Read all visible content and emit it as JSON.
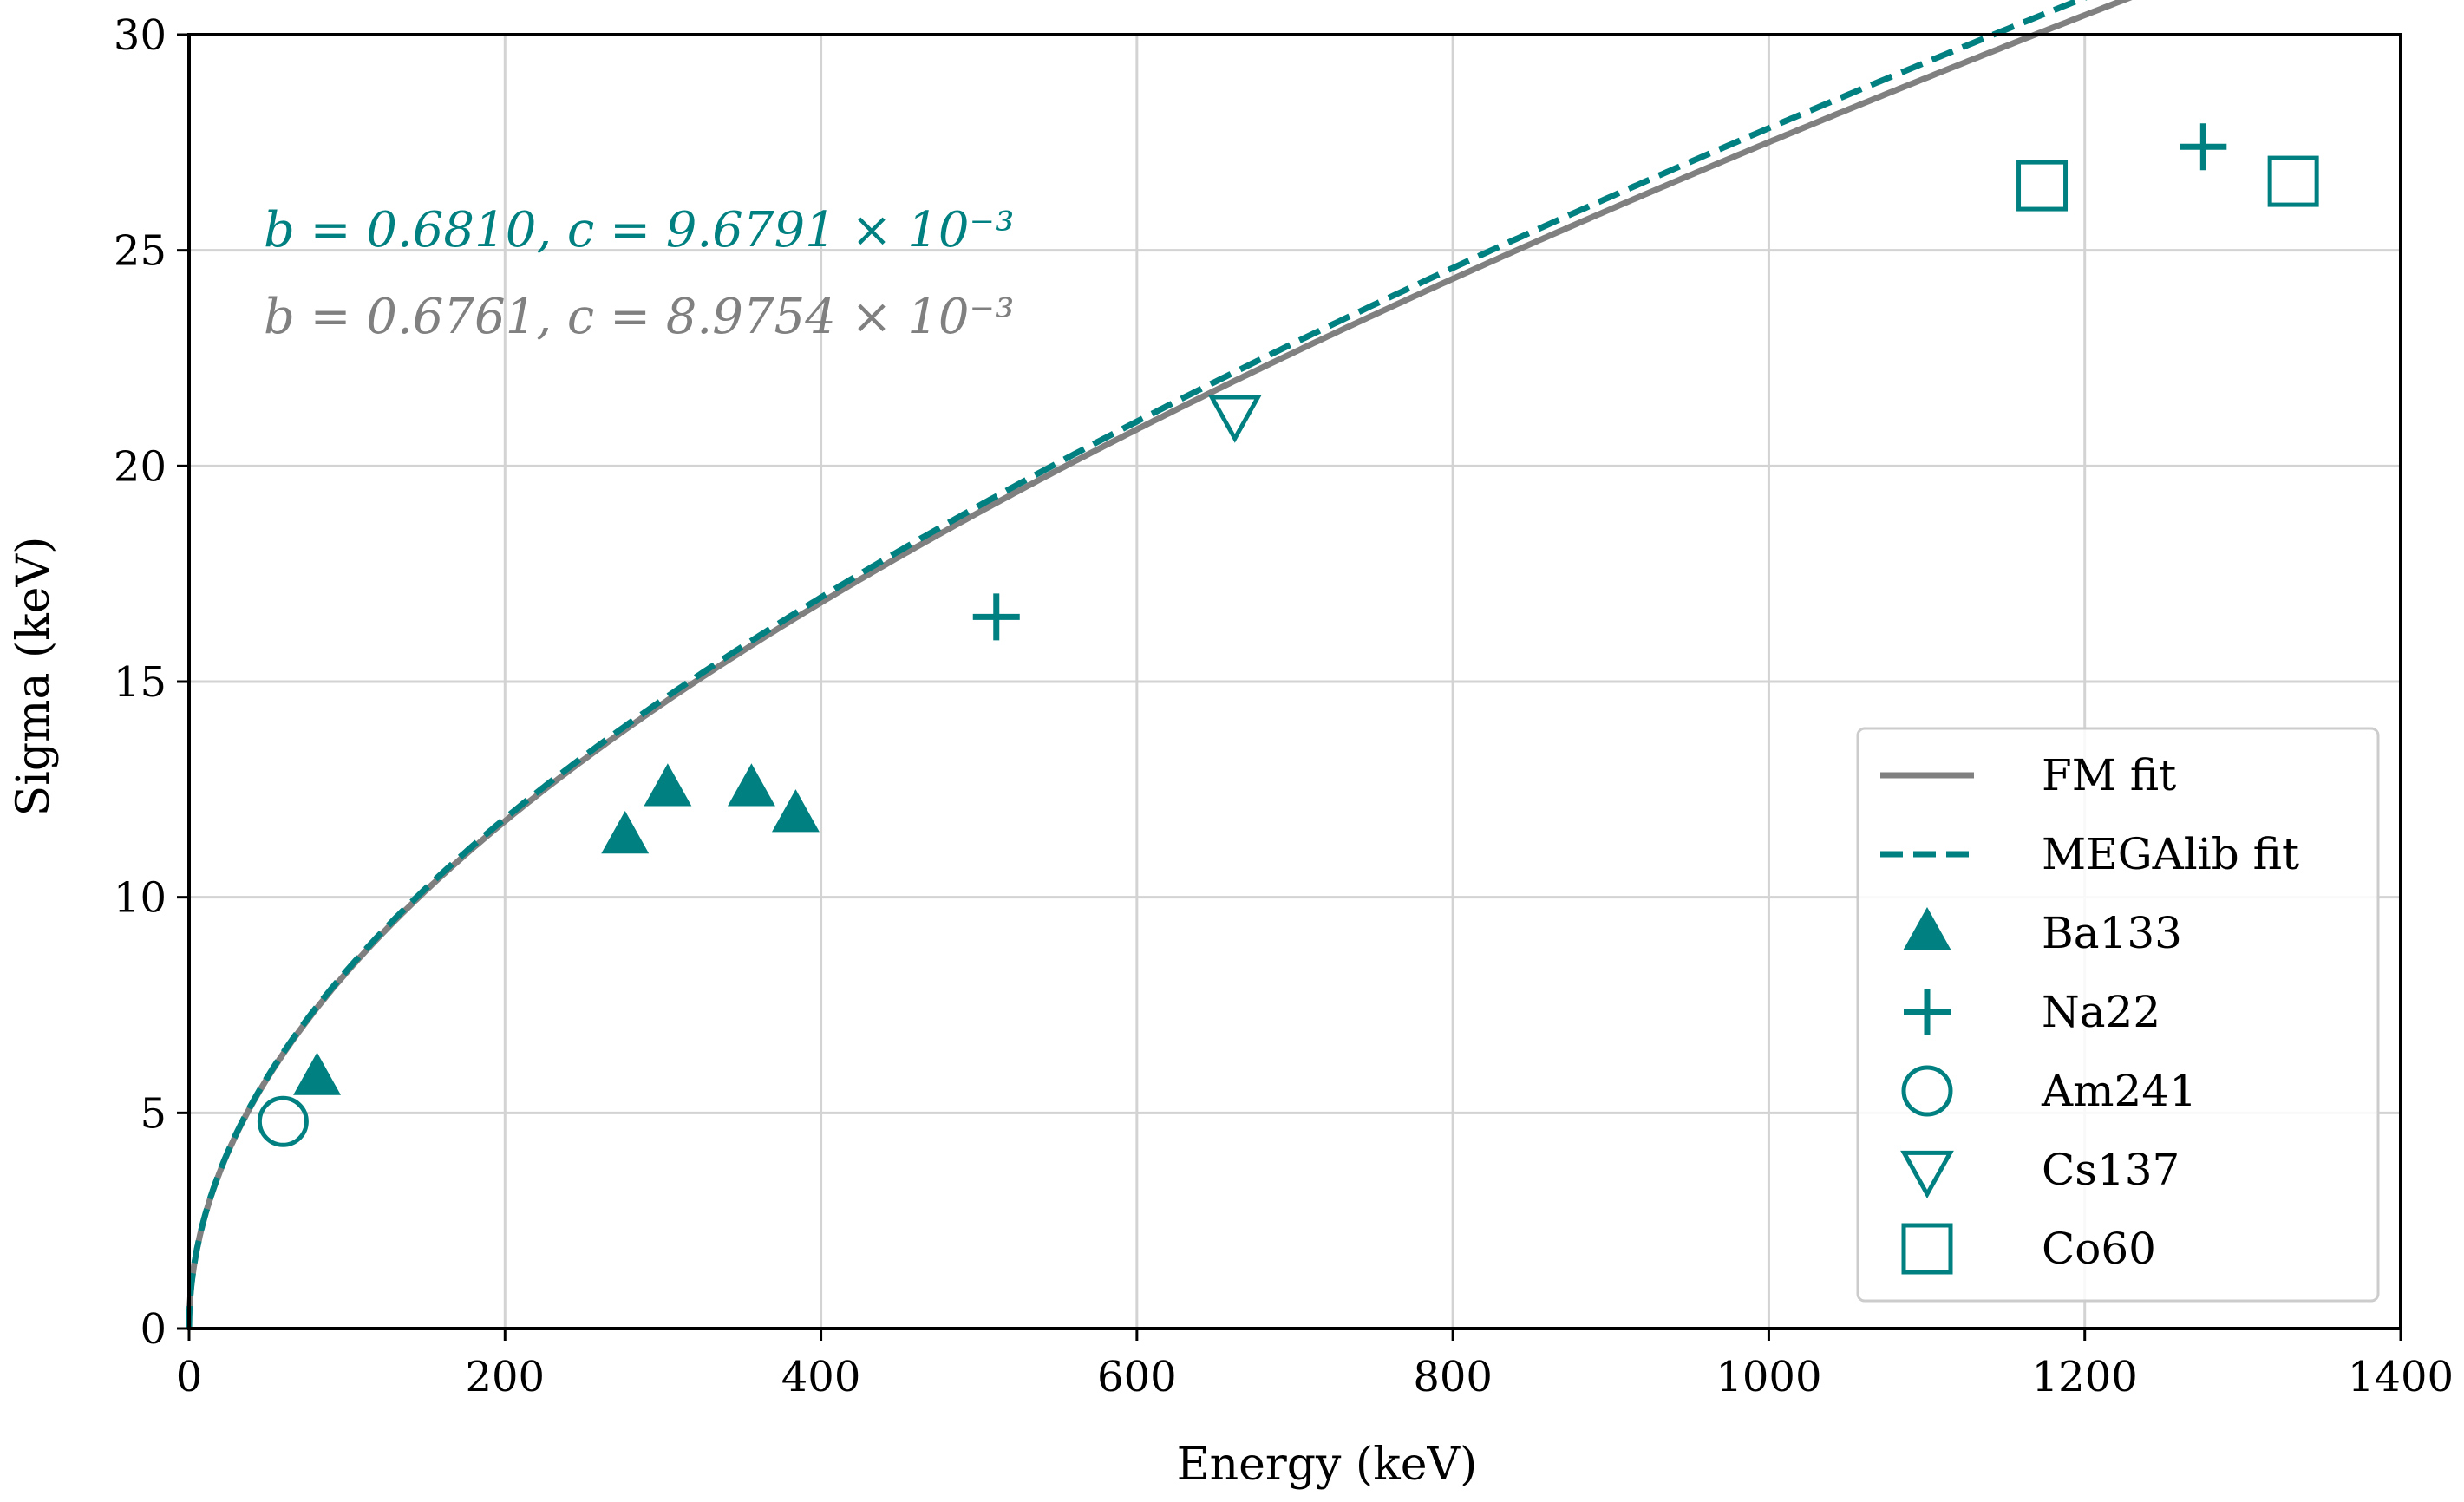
{
  "chart_data": {
    "type": "scatter",
    "title": "",
    "xlabel": "Energy (keV)",
    "ylabel": "Sigma (keV)",
    "xlim": [
      0,
      1400
    ],
    "ylim": [
      0,
      30
    ],
    "xticks": [
      0,
      200,
      400,
      600,
      800,
      1000,
      1200,
      1400
    ],
    "yticks": [
      0,
      5,
      10,
      15,
      20,
      25,
      30
    ],
    "xtick_labels": [
      "0",
      "200",
      "400",
      "600",
      "800",
      "1000",
      "1200",
      "1400"
    ],
    "ytick_labels": [
      "0",
      "5",
      "10",
      "15",
      "20",
      "25",
      "30"
    ],
    "grid": true,
    "legend_position": "bottom-right",
    "colors": {
      "teal": "#008080",
      "gray": "#808080"
    },
    "fits": [
      {
        "name": "FM fit",
        "style": "solid",
        "color": "#808080",
        "b": 0.6761,
        "c": 0.0089754
      },
      {
        "name": "MEGAlib fit",
        "style": "dashed",
        "color": "#008080",
        "b": 0.681,
        "c": 0.0096791
      }
    ],
    "series": [
      {
        "name": "Ba133",
        "marker": "triangle-up",
        "filled": true,
        "x": [
          81,
          276,
          303,
          356,
          384
        ],
        "y": [
          5.8,
          11.4,
          12.5,
          12.5,
          11.9
        ]
      },
      {
        "name": "Na22",
        "marker": "plus",
        "filled": false,
        "x": [
          511,
          1275
        ],
        "y": [
          16.5,
          27.4
        ]
      },
      {
        "name": "Am241",
        "marker": "circle",
        "filled": false,
        "x": [
          59.5
        ],
        "y": [
          4.8
        ]
      },
      {
        "name": "Cs137",
        "marker": "triangle-down",
        "filled": false,
        "x": [
          662
        ],
        "y": [
          21.2
        ]
      },
      {
        "name": "Co60",
        "marker": "square",
        "filled": false,
        "x": [
          1173,
          1332
        ],
        "y": [
          26.5,
          26.6
        ]
      }
    ],
    "annotations": [
      {
        "text": "b = 0.6810, c = 9.6791 × 10⁻³",
        "color": "#008080"
      },
      {
        "text": "b = 0.6761, c = 8.9754 × 10⁻³",
        "color": "#808080"
      }
    ]
  }
}
